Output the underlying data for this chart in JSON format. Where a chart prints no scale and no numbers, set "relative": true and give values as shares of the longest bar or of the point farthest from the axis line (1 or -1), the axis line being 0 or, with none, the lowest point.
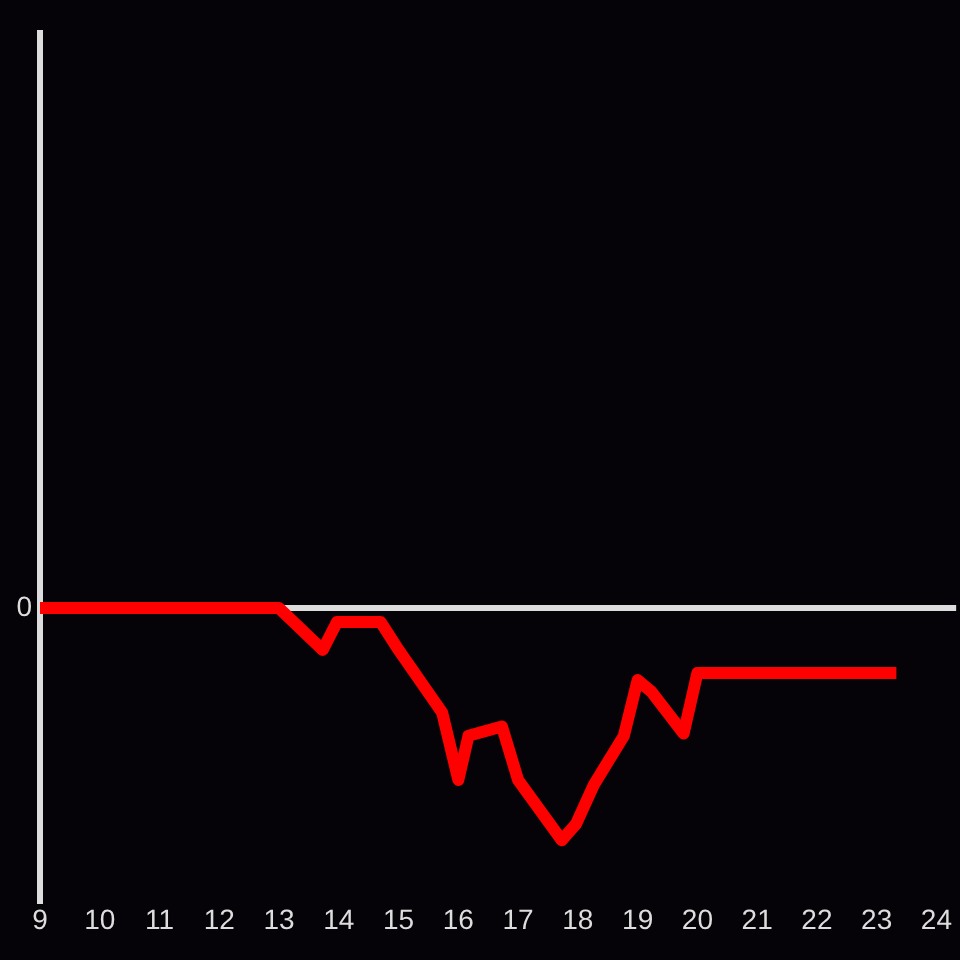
{
  "chart_data": {
    "type": "line",
    "relative": true,
    "x": [
      9,
      13,
      13.73,
      13.97,
      14.7,
      15.0,
      15.73,
      16.0,
      16.17,
      16.73,
      17.0,
      17.73,
      17.97,
      18.27,
      18.77,
      19.0,
      19.23,
      19.77,
      20.0,
      23.33
    ],
    "series": [
      {
        "color": "#ff0000",
        "values": [
          0,
          0,
          -0.18,
          -0.06,
          -0.06,
          -0.18,
          -0.45,
          -0.74,
          -0.55,
          -0.51,
          -0.74,
          -1,
          -0.93,
          -0.76,
          -0.55,
          -0.31,
          -0.36,
          -0.54,
          -0.28,
          -0.28
        ]
      }
    ],
    "xlim": [
      9,
      24.33
    ],
    "xticks": [
      9,
      10,
      11,
      12,
      13,
      14,
      15,
      16,
      17,
      18,
      19,
      20,
      21,
      22,
      23,
      24
    ],
    "ref_lines": [
      {
        "axis": "y",
        "value": 0,
        "label": "0",
        "color": "#dddddd"
      }
    ],
    "grid": false,
    "legend": false,
    "marker": "none",
    "line_style": "solid"
  }
}
